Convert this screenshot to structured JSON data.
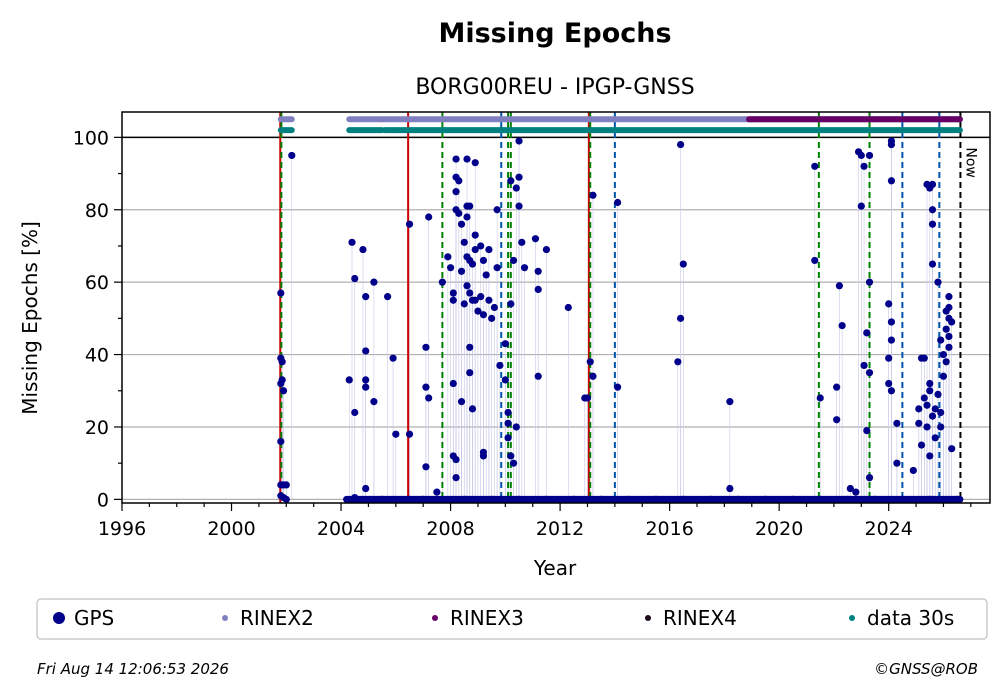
{
  "chart_data": {
    "type": "scatter",
    "title": "Missing Epochs",
    "subtitle": "BORG00REU - IPGP-GNSS",
    "xlabel": "Year",
    "ylabel": "Missing Epochs [%]",
    "xlim": [
      1996,
      2027.7
    ],
    "ylim": [
      -1,
      107
    ],
    "grid": true,
    "x_ticks": [
      {
        "value": 1996,
        "label": "1996"
      },
      {
        "value": 2000,
        "label": "2000"
      },
      {
        "value": 2004,
        "label": "2004"
      },
      {
        "value": 2008,
        "label": "2008"
      },
      {
        "value": 2012,
        "label": "2012"
      },
      {
        "value": 2016,
        "label": "2016"
      },
      {
        "value": 2020,
        "label": "2020"
      },
      {
        "value": 2024,
        "label": "2024"
      }
    ],
    "y_ticks": [
      {
        "value": 0,
        "label": "0"
      },
      {
        "value": 20,
        "label": "20"
      },
      {
        "value": 40,
        "label": "40"
      },
      {
        "value": 60,
        "label": "60"
      },
      {
        "value": 80,
        "label": "80"
      },
      {
        "value": 100,
        "label": "100"
      }
    ],
    "series": [
      {
        "name": "GPS",
        "color": "#00008b",
        "marker": "dot",
        "points": [
          [
            2001.8,
            57
          ],
          [
            2001.8,
            39
          ],
          [
            2001.85,
            38
          ],
          [
            2001.85,
            33
          ],
          [
            2001.8,
            32
          ],
          [
            2001.9,
            30
          ],
          [
            2001.8,
            16
          ],
          [
            2001.8,
            4
          ],
          [
            2001.9,
            4
          ],
          [
            2002.0,
            4
          ],
          [
            2001.8,
            1
          ],
          [
            2001.9,
            0.5
          ],
          [
            2002.0,
            0
          ],
          [
            2002.2,
            95
          ],
          [
            2004.3,
            33
          ],
          [
            2004.4,
            71
          ],
          [
            2004.5,
            61
          ],
          [
            2004.5,
            24
          ],
          [
            2004.8,
            69
          ],
          [
            2004.9,
            56
          ],
          [
            2004.9,
            41
          ],
          [
            2004.9,
            33
          ],
          [
            2004.9,
            31
          ],
          [
            2004.9,
            3
          ],
          [
            2005.2,
            60
          ],
          [
            2005.2,
            27
          ],
          [
            2005.7,
            56
          ],
          [
            2005.9,
            39
          ],
          [
            2006.0,
            18
          ],
          [
            2006.5,
            76
          ],
          [
            2006.5,
            18
          ],
          [
            2007.1,
            42
          ],
          [
            2007.1,
            31
          ],
          [
            2007.1,
            9
          ],
          [
            2007.2,
            78
          ],
          [
            2007.2,
            28
          ],
          [
            2007.5,
            2
          ],
          [
            2007.7,
            60
          ],
          [
            2007.9,
            67
          ],
          [
            2008.0,
            64
          ],
          [
            2008.1,
            57
          ],
          [
            2008.1,
            55
          ],
          [
            2008.1,
            32
          ],
          [
            2008.1,
            12
          ],
          [
            2008.2,
            11
          ],
          [
            2008.2,
            6
          ],
          [
            2008.2,
            94
          ],
          [
            2008.2,
            89
          ],
          [
            2008.2,
            85
          ],
          [
            2008.2,
            80
          ],
          [
            2008.3,
            88
          ],
          [
            2008.3,
            79
          ],
          [
            2008.4,
            76
          ],
          [
            2008.4,
            63
          ],
          [
            2008.4,
            27
          ],
          [
            2008.5,
            54
          ],
          [
            2008.5,
            71
          ],
          [
            2008.6,
            94
          ],
          [
            2008.6,
            81
          ],
          [
            2008.6,
            78
          ],
          [
            2008.6,
            67
          ],
          [
            2008.6,
            59
          ],
          [
            2008.7,
            81
          ],
          [
            2008.7,
            66
          ],
          [
            2008.7,
            57
          ],
          [
            2008.7,
            42
          ],
          [
            2008.7,
            35
          ],
          [
            2008.8,
            55
          ],
          [
            2008.8,
            65
          ],
          [
            2008.8,
            25
          ],
          [
            2008.9,
            93
          ],
          [
            2008.9,
            73
          ],
          [
            2008.9,
            69
          ],
          [
            2008.9,
            55
          ],
          [
            2009.0,
            52
          ],
          [
            2009.1,
            56
          ],
          [
            2009.1,
            70
          ],
          [
            2009.2,
            66
          ],
          [
            2009.2,
            51
          ],
          [
            2009.2,
            13
          ],
          [
            2009.2,
            12
          ],
          [
            2009.3,
            62
          ],
          [
            2009.4,
            69
          ],
          [
            2009.4,
            55
          ],
          [
            2009.5,
            50
          ],
          [
            2009.6,
            53
          ],
          [
            2009.7,
            80
          ],
          [
            2009.7,
            64
          ],
          [
            2009.8,
            37
          ],
          [
            2010.0,
            43
          ],
          [
            2010.0,
            33
          ],
          [
            2010.1,
            24
          ],
          [
            2010.1,
            21
          ],
          [
            2010.1,
            17
          ],
          [
            2010.2,
            12
          ],
          [
            2010.2,
            88
          ],
          [
            2010.2,
            54
          ],
          [
            2010.3,
            66
          ],
          [
            2010.3,
            10
          ],
          [
            2010.4,
            86
          ],
          [
            2010.4,
            20
          ],
          [
            2010.5,
            81
          ],
          [
            2010.5,
            89
          ],
          [
            2010.5,
            99
          ],
          [
            2010.6,
            71
          ],
          [
            2010.7,
            64
          ],
          [
            2011.1,
            72
          ],
          [
            2011.2,
            58
          ],
          [
            2011.2,
            63
          ],
          [
            2011.2,
            34
          ],
          [
            2011.5,
            69
          ],
          [
            2012.3,
            53
          ],
          [
            2012.9,
            28
          ],
          [
            2013.0,
            28
          ],
          [
            2013.1,
            38
          ],
          [
            2013.2,
            84
          ],
          [
            2013.2,
            34
          ],
          [
            2014.1,
            82
          ],
          [
            2014.1,
            31
          ],
          [
            2016.3,
            38
          ],
          [
            2016.4,
            50
          ],
          [
            2016.4,
            98
          ],
          [
            2016.5,
            65
          ],
          [
            2018.2,
            27
          ],
          [
            2018.2,
            3
          ],
          [
            2021.3,
            92
          ],
          [
            2021.3,
            66
          ],
          [
            2021.5,
            28
          ],
          [
            2022.1,
            31
          ],
          [
            2022.1,
            22
          ],
          [
            2022.2,
            59
          ],
          [
            2022.3,
            48
          ],
          [
            2022.6,
            3
          ],
          [
            2022.8,
            2
          ],
          [
            2022.9,
            96
          ],
          [
            2023.0,
            95
          ],
          [
            2023.0,
            81
          ],
          [
            2023.1,
            92
          ],
          [
            2023.1,
            37
          ],
          [
            2023.2,
            46
          ],
          [
            2023.2,
            19
          ],
          [
            2023.3,
            60
          ],
          [
            2023.3,
            35
          ],
          [
            2023.3,
            95
          ],
          [
            2023.3,
            6
          ],
          [
            2024.1,
            99
          ],
          [
            2024.1,
            98
          ],
          [
            2024.1,
            88
          ],
          [
            2024.0,
            54
          ],
          [
            2024.1,
            49
          ],
          [
            2024.1,
            44
          ],
          [
            2024.0,
            39
          ],
          [
            2024.0,
            32
          ],
          [
            2024.1,
            30
          ],
          [
            2024.3,
            21
          ],
          [
            2024.3,
            10
          ],
          [
            2024.9,
            8
          ],
          [
            2025.1,
            25
          ],
          [
            2025.1,
            21
          ],
          [
            2025.2,
            39
          ],
          [
            2025.2,
            15
          ],
          [
            2025.3,
            39
          ],
          [
            2025.3,
            28
          ],
          [
            2025.4,
            87
          ],
          [
            2025.4,
            26
          ],
          [
            2025.4,
            20
          ],
          [
            2025.5,
            86
          ],
          [
            2025.5,
            32
          ],
          [
            2025.5,
            12
          ],
          [
            2025.5,
            30
          ],
          [
            2025.6,
            87
          ],
          [
            2025.6,
            80
          ],
          [
            2025.6,
            76
          ],
          [
            2025.6,
            65
          ],
          [
            2025.6,
            23
          ],
          [
            2025.7,
            17
          ],
          [
            2025.7,
            25
          ],
          [
            2025.8,
            60
          ],
          [
            2025.8,
            29
          ],
          [
            2025.9,
            24
          ],
          [
            2025.9,
            20
          ],
          [
            2025.9,
            44
          ],
          [
            2026.0,
            40
          ],
          [
            2026.0,
            34
          ],
          [
            2026.1,
            52
          ],
          [
            2026.1,
            47
          ],
          [
            2026.1,
            38
          ],
          [
            2026.2,
            56
          ],
          [
            2026.2,
            53
          ],
          [
            2026.2,
            50
          ],
          [
            2026.2,
            45
          ],
          [
            2026.2,
            42
          ],
          [
            2026.3,
            49
          ],
          [
            2026.3,
            14
          ],
          [
            2004.5,
            0.5
          ],
          [
            2005.5,
            0
          ],
          [
            2006.5,
            0
          ],
          [
            2007.0,
            0
          ],
          [
            2008.5,
            0
          ],
          [
            2009.5,
            0
          ],
          [
            2010.5,
            0
          ],
          [
            2011.5,
            0
          ],
          [
            2012.5,
            0
          ],
          [
            2013.5,
            0
          ],
          [
            2014.5,
            0
          ],
          [
            2015.5,
            0
          ],
          [
            2016.5,
            0
          ],
          [
            2017.5,
            0
          ],
          [
            2018.5,
            0
          ],
          [
            2019.5,
            0
          ],
          [
            2020.5,
            0
          ],
          [
            2021.5,
            0
          ],
          [
            2022.5,
            0
          ],
          [
            2023.5,
            0
          ],
          [
            2024.5,
            0
          ],
          [
            2025.5,
            0
          ],
          [
            2026.5,
            0
          ]
        ]
      },
      {
        "name": "RINEX2",
        "color": "#8080c0",
        "marker": "small-dot"
      },
      {
        "name": "RINEX3",
        "color": "#660066",
        "marker": "small-dot"
      },
      {
        "name": "RINEX4",
        "color": "#1a0a1a",
        "marker": "small-dot"
      },
      {
        "name": "data 30s",
        "color": "#008080",
        "marker": "small-dot"
      }
    ],
    "zero_band": [
      2004.2,
      2026.6
    ],
    "top_bands": [
      {
        "series": "RINEX2",
        "y": 105,
        "ranges": [
          [
            2001.8,
            2002.2
          ],
          [
            2004.3,
            2005.5
          ],
          [
            2005.55,
            2019.0
          ],
          [
            2019.0,
            2026.6
          ]
        ]
      },
      {
        "series": "RINEX3",
        "y": 105,
        "ranges": [
          [
            2018.9,
            2026.6
          ]
        ]
      },
      {
        "series": "data 30s",
        "y": 102,
        "ranges": [
          [
            2001.8,
            2002.2
          ],
          [
            2004.3,
            2005.5
          ],
          [
            2005.6,
            2026.6
          ]
        ]
      }
    ],
    "vlines": [
      {
        "x": 2001.78,
        "color": "#cc0000",
        "style": "solid"
      },
      {
        "x": 2001.82,
        "color": "#008000",
        "style": "dashed"
      },
      {
        "x": 2006.45,
        "color": "#cc0000",
        "style": "solid"
      },
      {
        "x": 2007.7,
        "color": "#008000",
        "style": "dashed"
      },
      {
        "x": 2009.85,
        "color": "#0055aa",
        "style": "dashed"
      },
      {
        "x": 2010.1,
        "color": "#008000",
        "style": "dashed"
      },
      {
        "x": 2010.2,
        "color": "#008000",
        "style": "dashed"
      },
      {
        "x": 2013.05,
        "color": "#cc0000",
        "style": "solid"
      },
      {
        "x": 2013.1,
        "color": "#008000",
        "style": "dashed"
      },
      {
        "x": 2014.0,
        "color": "#0055aa",
        "style": "dashed"
      },
      {
        "x": 2021.45,
        "color": "#008000",
        "style": "dashed"
      },
      {
        "x": 2023.3,
        "color": "#008000",
        "style": "dashed"
      },
      {
        "x": 2024.5,
        "color": "#0055aa",
        "style": "dashed"
      },
      {
        "x": 2025.85,
        "color": "#0055aa",
        "style": "dashed"
      },
      {
        "x": 2026.62,
        "color": "#000000",
        "style": "dashed"
      }
    ],
    "now_label": "Now",
    "legend_placement": "bottom"
  },
  "footer": {
    "timestamp": "Fri Aug 14 12:06:53 2026",
    "credit": "©GNSS@ROB"
  }
}
